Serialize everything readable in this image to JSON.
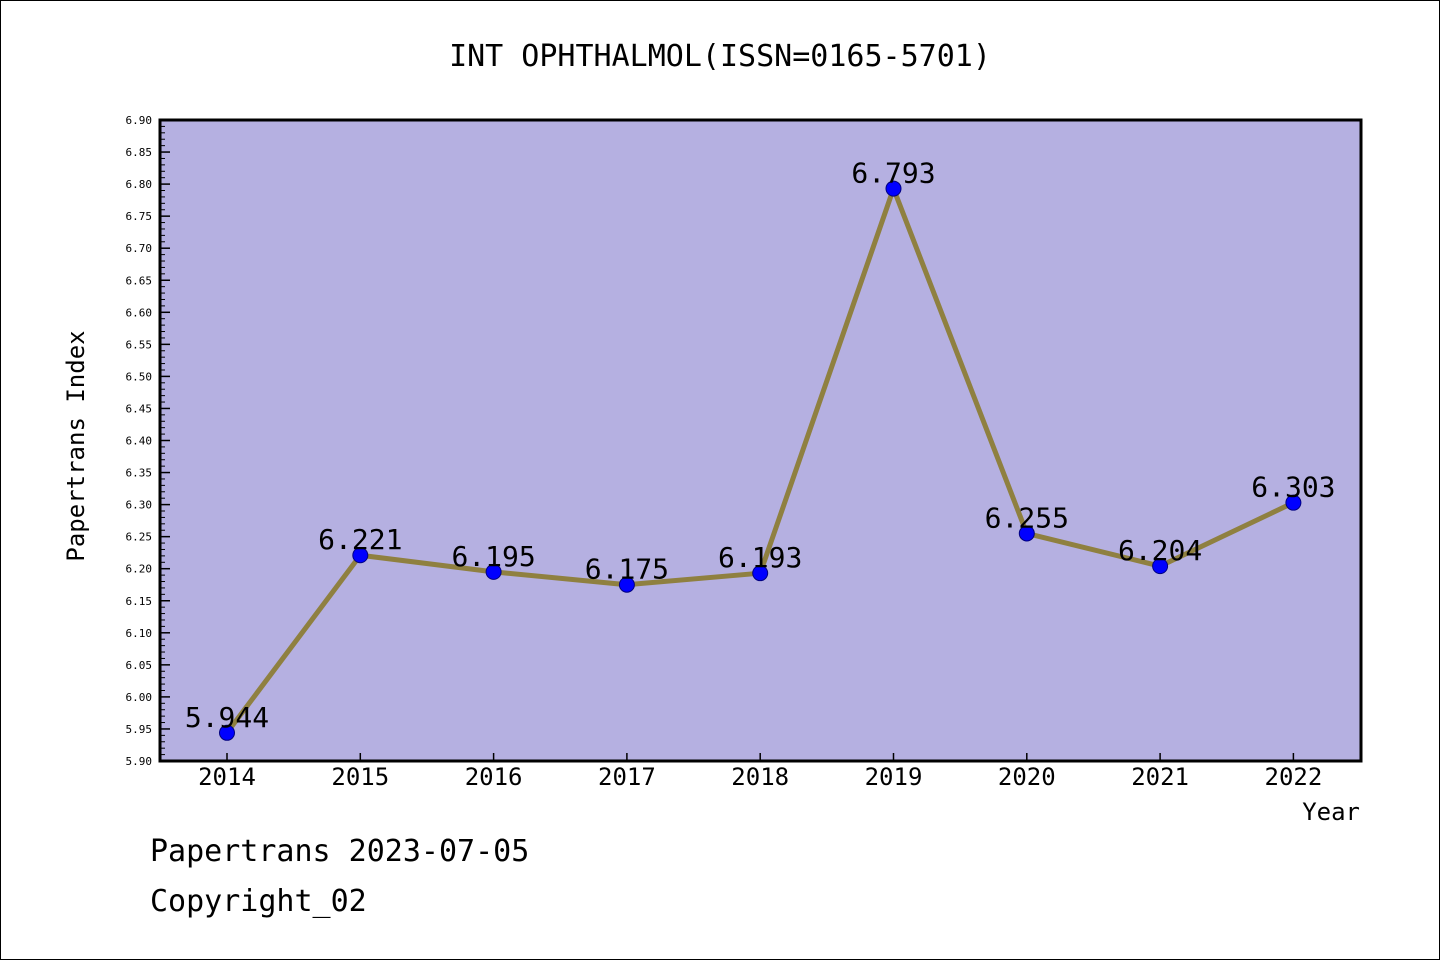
{
  "chart_data": {
    "type": "line",
    "title": "INT OPHTHALMOL(ISSN=0165-5701)",
    "xlabel": "Year",
    "ylabel": "Papertrans Index",
    "categories": [
      "2014",
      "2015",
      "2016",
      "2017",
      "2018",
      "2019",
      "2020",
      "2021",
      "2022"
    ],
    "values": [
      5.944,
      6.221,
      6.195,
      6.175,
      6.193,
      6.793,
      6.255,
      6.204,
      6.303
    ],
    "data_labels": [
      "5.944",
      "6.221",
      "6.195",
      "6.175",
      "6.193",
      "6.793",
      "6.255",
      "6.204",
      "6.303"
    ],
    "ylim": [
      5.9,
      6.9
    ],
    "yticks": [
      "5.90",
      "5.95",
      "6.00",
      "6.05",
      "6.10",
      "6.15",
      "6.20",
      "6.25",
      "6.30",
      "6.35",
      "6.40",
      "6.45",
      "6.50",
      "6.55",
      "6.60",
      "6.65",
      "6.70",
      "6.75",
      "6.80",
      "6.85",
      "6.90"
    ],
    "grid": false,
    "legend": "none",
    "colors": {
      "plot_background": "#b5b0e1",
      "line": "#8f8040",
      "marker": "#0000ff"
    }
  },
  "footer": {
    "source": "Papertrans 2023-07-05",
    "copyright": "Copyright_02"
  }
}
